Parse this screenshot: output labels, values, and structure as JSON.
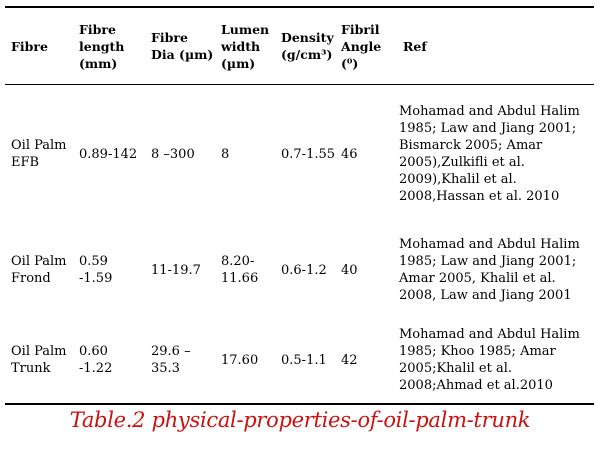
{
  "table": {
    "headers": [
      "Fibre",
      "Fibre\nlength\n(mm)",
      "Fibre\nDia (µm)",
      "Lumen\nwidth\n(µm)",
      "Density\n(g/cm³)",
      "Fibril\nAngle (⁰)",
      "Ref"
    ],
    "rows": [
      {
        "fibre": "Oil Palm\nEFB",
        "length": "0.89-142",
        "dia": "8 –300",
        "lumen": "8",
        "density": "0.7-1.55",
        "angle": "46",
        "ref": "Mohamad and Abdul Halim\n1985; Law and Jiang 2001;\nBismarck 2005; Amar\n2005),Zulkifli et al.\n2009),Khalil et al.\n2008,Hassan et al. 2010"
      },
      {
        "fibre": "Oil Palm\nFrond",
        "length": "0.59 -1.59",
        "dia": "11-19.7",
        "lumen": "8.20-\n11.66",
        "density": "0.6-1.2",
        "angle": "40",
        "ref": "Mohamad and Abdul Halim\n1985; Law and Jiang 2001;\nAmar 2005, Khalil et al.\n2008, Law and Jiang 2001"
      },
      {
        "fibre": "Oil Palm\nTrunk",
        "length": "0.60 -1.22",
        "dia": "29.6 –35.3",
        "lumen": "17.60",
        "density": "0.5-1.1",
        "angle": "42",
        "ref": "Mohamad and Abdul Halim\n1985; Khoo 1985; Amar\n2005;Khalil et al.\n2008;Ahmad et al.2010"
      }
    ]
  },
  "caption": "Table.2  physical-properties-of-oil-palm-trunk",
  "colors": {
    "caption": "#cc1010",
    "rule": "#000000"
  }
}
